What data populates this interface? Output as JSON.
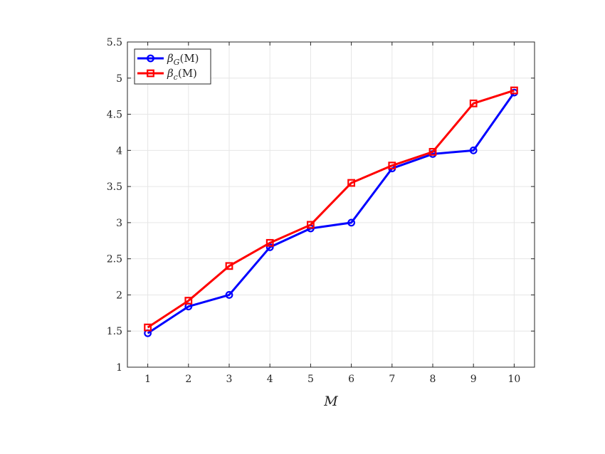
{
  "chart_data": {
    "type": "line",
    "xlabel": "M",
    "ylabel": "",
    "xlim": [
      0.5,
      10.5
    ],
    "ylim": [
      1,
      5.5
    ],
    "xticks": [
      1,
      2,
      3,
      4,
      5,
      6,
      7,
      8,
      9,
      10
    ],
    "xtick_labels": [
      "1",
      "2",
      "3",
      "4",
      "5",
      "6",
      "7",
      "8",
      "9",
      "10"
    ],
    "yticks": [
      1,
      1.5,
      2,
      2.5,
      3,
      3.5,
      4,
      4.5,
      5,
      5.5
    ],
    "ytick_labels": [
      "1",
      "1.5",
      "2",
      "2.5",
      "3",
      "3.5",
      "4",
      "4.5",
      "5",
      "5.5"
    ],
    "grid": true,
    "legend_position": "top-left",
    "x": [
      1,
      2,
      3,
      4,
      5,
      6,
      7,
      8,
      9,
      10
    ],
    "series": [
      {
        "name": "βG(M)",
        "name_base": "β",
        "name_sub": "G",
        "name_rest": "(M)",
        "color": "#0000ff",
        "marker": "circle",
        "values": [
          1.47,
          1.84,
          2.0,
          2.66,
          2.92,
          3.0,
          3.75,
          3.95,
          4.0,
          4.8
        ]
      },
      {
        "name": "βc(M)",
        "name_base": "β",
        "name_sub": "c",
        "name_rest": "(M)",
        "color": "#ff0000",
        "marker": "square",
        "values": [
          1.55,
          1.92,
          2.4,
          2.72,
          2.97,
          3.55,
          3.79,
          3.98,
          4.65,
          4.83
        ]
      }
    ]
  }
}
